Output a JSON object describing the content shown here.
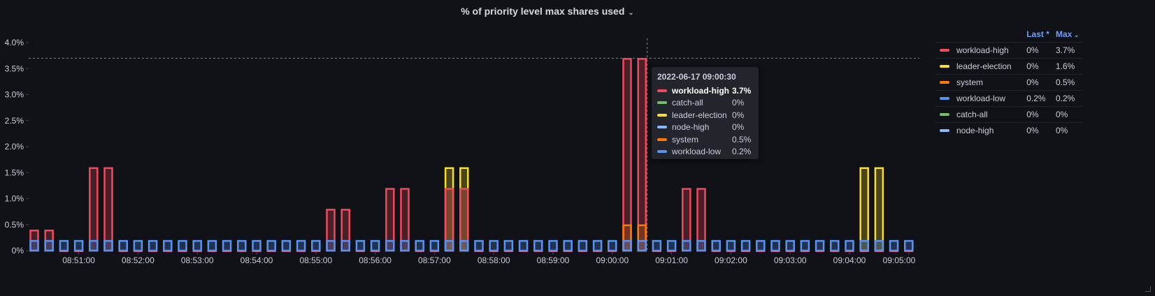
{
  "panel": {
    "title": "% of priority level max shares used"
  },
  "legend": {
    "headers": {
      "last": "Last *",
      "max": "Max"
    },
    "rows": [
      {
        "name": "workload-high",
        "color": "#f2495c",
        "last": "0%",
        "max": "3.7%"
      },
      {
        "name": "leader-election",
        "color": "#fade2a",
        "last": "0%",
        "max": "1.6%"
      },
      {
        "name": "system",
        "color": "#ff780a",
        "last": "0%",
        "max": "0.5%"
      },
      {
        "name": "workload-low",
        "color": "#5794f2",
        "last": "0.2%",
        "max": "0.2%"
      },
      {
        "name": "catch-all",
        "color": "#73bf69",
        "last": "0%",
        "max": "0%"
      },
      {
        "name": "node-high",
        "color": "#8ab8ff",
        "last": "0%",
        "max": "0%"
      }
    ]
  },
  "tooltip": {
    "time": "2022-06-17 09:00:30",
    "rows": [
      {
        "name": "workload-high",
        "color": "#f2495c",
        "value": "3.7%"
      },
      {
        "name": "catch-all",
        "color": "#73bf69",
        "value": "0%"
      },
      {
        "name": "leader-election",
        "color": "#fade2a",
        "value": "0%"
      },
      {
        "name": "node-high",
        "color": "#8ab8ff",
        "value": "0%"
      },
      {
        "name": "system",
        "color": "#ff780a",
        "value": "0.5%"
      },
      {
        "name": "workload-low",
        "color": "#5794f2",
        "value": "0.2%"
      }
    ]
  },
  "chart_data": {
    "type": "bar",
    "title": "% of priority level max shares used",
    "x_start": "08:50:15",
    "x_interval_seconds": 15,
    "x_tick_labels": [
      "08:51:00",
      "08:52:00",
      "08:53:00",
      "08:54:00",
      "08:55:00",
      "08:56:00",
      "08:57:00",
      "08:58:00",
      "08:59:00",
      "09:00:00",
      "09:01:00",
      "09:02:00",
      "09:03:00",
      "09:04:00",
      "09:05:00"
    ],
    "y_tick_labels": [
      "0%",
      "0.5%",
      "1.0%",
      "1.5%",
      "2.0%",
      "2.5%",
      "3.0%",
      "3.5%",
      "4.0%"
    ],
    "ylim": [
      0,
      4.0
    ],
    "threshold_line": 3.7,
    "hover_index": 41,
    "series": [
      {
        "name": "leader-election",
        "color": "#fade2a",
        "values": [
          0,
          0,
          0,
          0,
          0,
          0,
          0,
          0,
          0,
          0,
          0,
          0,
          0,
          0,
          0,
          0,
          0,
          0,
          0,
          0,
          0,
          0,
          0,
          0,
          0,
          0,
          0,
          0,
          1.6,
          1.6,
          0,
          0,
          0,
          0,
          0,
          0,
          0,
          0,
          0,
          0,
          0,
          0,
          0,
          0,
          0,
          0,
          0,
          0,
          0,
          0,
          0,
          0,
          0,
          0,
          0,
          0,
          1.6,
          1.6,
          0,
          0
        ]
      },
      {
        "name": "workload-high",
        "color": "#f2495c",
        "values": [
          0.4,
          0.4,
          0,
          0,
          1.6,
          1.6,
          0,
          0,
          0,
          0,
          0,
          0,
          0,
          0,
          0,
          0,
          0,
          0,
          0,
          0,
          0.8,
          0.8,
          0,
          0,
          1.2,
          1.2,
          0,
          0,
          1.2,
          1.2,
          0,
          0,
          0,
          0,
          0,
          0,
          0,
          0,
          0,
          0,
          3.7,
          3.7,
          0,
          0,
          1.2,
          1.2,
          0,
          0,
          0,
          0,
          0,
          0,
          0,
          0,
          0,
          0,
          0,
          0,
          0,
          0
        ]
      },
      {
        "name": "system",
        "color": "#ff780a",
        "values": [
          0,
          0,
          0,
          0,
          0,
          0,
          0,
          0,
          0,
          0,
          0,
          0,
          0,
          0,
          0,
          0,
          0,
          0,
          0,
          0,
          0,
          0,
          0,
          0,
          0,
          0,
          0,
          0,
          0,
          0,
          0,
          0,
          0,
          0,
          0,
          0,
          0,
          0,
          0,
          0,
          0.5,
          0.5,
          0,
          0,
          0,
          0,
          0,
          0,
          0,
          0,
          0,
          0,
          0,
          0,
          0,
          0,
          0,
          0,
          0,
          0
        ]
      },
      {
        "name": "catch-all",
        "color": "#73bf69",
        "values": [
          0,
          0,
          0,
          0,
          0,
          0,
          0,
          0,
          0,
          0,
          0,
          0,
          0,
          0,
          0,
          0,
          0,
          0,
          0,
          0,
          0,
          0,
          0,
          0,
          0,
          0,
          0,
          0,
          0,
          0,
          0,
          0,
          0,
          0,
          0,
          0,
          0,
          0,
          0,
          0,
          0,
          0,
          0,
          0,
          0,
          0,
          0,
          0,
          0,
          0,
          0,
          0,
          0,
          0,
          0,
          0,
          0,
          0,
          0,
          0
        ]
      },
      {
        "name": "node-high",
        "color": "#8ab8ff",
        "values": [
          0,
          0,
          0,
          0,
          0,
          0,
          0,
          0,
          0,
          0,
          0,
          0,
          0,
          0,
          0,
          0,
          0,
          0,
          0,
          0,
          0,
          0,
          0,
          0,
          0,
          0,
          0,
          0,
          0,
          0,
          0,
          0,
          0,
          0,
          0,
          0,
          0,
          0,
          0,
          0,
          0,
          0,
          0,
          0,
          0,
          0,
          0,
          0,
          0,
          0,
          0,
          0,
          0,
          0,
          0,
          0,
          0,
          0,
          0,
          0
        ]
      },
      {
        "name": "workload-low",
        "color": "#5794f2",
        "values": [
          0.2,
          0.2,
          0.2,
          0.2,
          0.2,
          0.2,
          0.2,
          0.2,
          0.2,
          0.2,
          0.2,
          0.2,
          0.2,
          0.2,
          0.2,
          0.2,
          0.2,
          0.2,
          0.2,
          0.2,
          0.2,
          0.2,
          0.2,
          0.2,
          0.2,
          0.2,
          0.2,
          0.2,
          0.2,
          0.2,
          0.2,
          0.2,
          0.2,
          0.2,
          0.2,
          0.2,
          0.2,
          0.2,
          0.2,
          0.2,
          0.2,
          0.2,
          0.2,
          0.2,
          0.2,
          0.2,
          0.2,
          0.2,
          0.2,
          0.2,
          0.2,
          0.2,
          0.2,
          0.2,
          0.2,
          0.2,
          0.2,
          0.2,
          0.2,
          0.2
        ]
      }
    ]
  }
}
